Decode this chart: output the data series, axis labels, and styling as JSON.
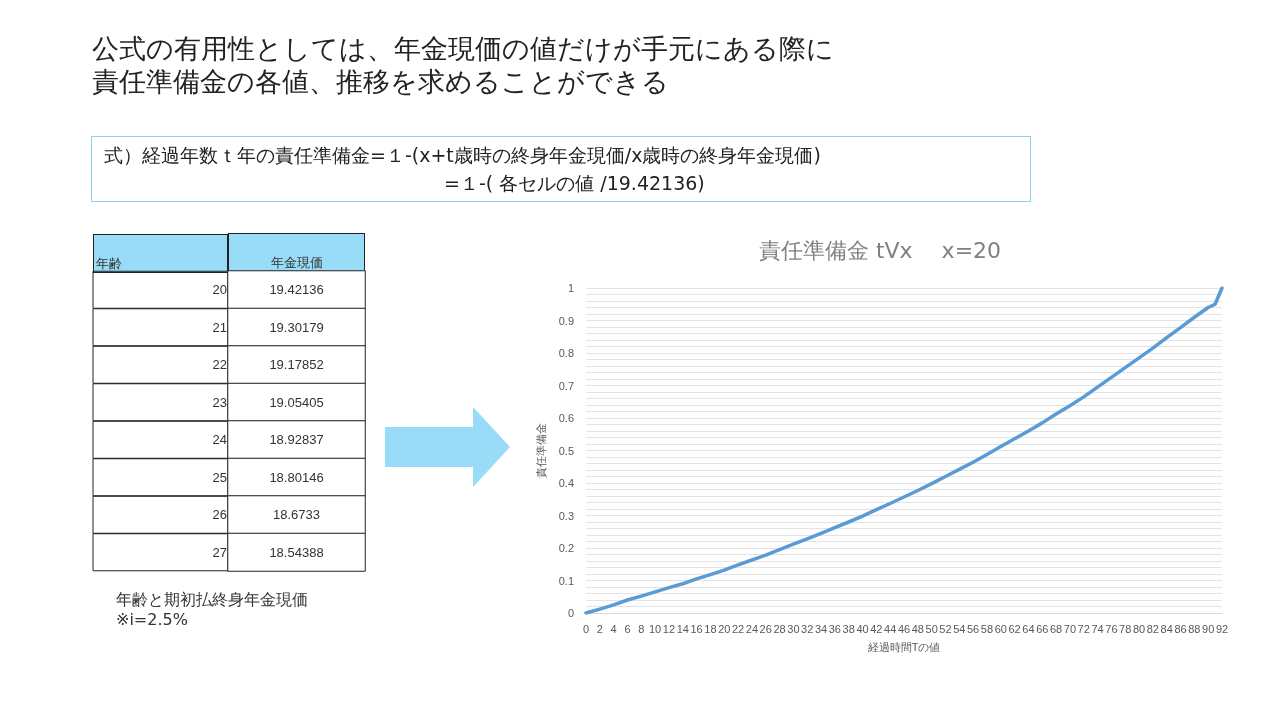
{
  "chart_data": [
    {
      "type": "other",
      "title": "公式の有用性としては、年金現価の値だけが手元にある際に責任準備金の各値、推移を求めることができる",
      "annotations": [
        "式）経過年数ｔ年の責任準備金=１-(x+t歳時の終身年金現価/x歳時の終身年金現価)",
        "=１-( 各セルの値 /19.42136)"
      ]
    },
    {
      "type": "heatmap",
      "ylabel": "年齢",
      "categories": [
        "年金現価"
      ],
      "y_categories": [
        "20",
        "21",
        "22",
        "23",
        "24",
        "25",
        "26",
        "27"
      ],
      "cells": [
        [
          19.42136
        ],
        [
          19.30179
        ],
        [
          19.17852
        ],
        [
          19.05405
        ],
        [
          18.92837
        ],
        [
          18.80146
        ],
        [
          18.6733
        ],
        [
          18.54388
        ]
      ],
      "data_labels": true,
      "annotations": [
        "年齢と期初払終身年金現価\n※i=2.5%"
      ],
      "color": "#99dcf7"
    },
    {
      "type": "line",
      "title": "責任準備金 tVx　 x=20",
      "xlabel": "経過時間Tの値",
      "ylabel": "責任準備金",
      "grid": "y",
      "marker": "none",
      "line_style": "solid",
      "x": [
        0,
        2,
        4,
        6,
        8,
        10,
        12,
        14,
        16,
        18,
        20,
        22,
        24,
        26,
        28,
        30,
        32,
        34,
        36,
        38,
        40,
        42,
        44,
        46,
        48,
        50,
        52,
        54,
        56,
        58,
        60,
        62,
        64,
        66,
        68,
        70,
        72,
        74,
        76,
        78,
        80,
        82,
        84,
        86,
        88,
        90,
        91,
        92
      ],
      "series": [
        {
          "color": "#5b9bd5",
          "values": [
            0,
            0.012,
            0.025,
            0.04,
            0.052,
            0.065,
            0.078,
            0.09,
            0.105,
            0.118,
            0.132,
            0.148,
            0.163,
            0.178,
            0.195,
            0.212,
            0.228,
            0.245,
            0.263,
            0.28,
            0.298,
            0.318,
            0.337,
            0.357,
            0.377,
            0.398,
            0.42,
            0.442,
            0.464,
            0.488,
            0.512,
            0.536,
            0.56,
            0.585,
            0.612,
            0.638,
            0.665,
            0.695,
            0.725,
            0.755,
            0.785,
            0.815,
            0.847,
            0.878,
            0.91,
            0.94,
            0.95,
            1
          ]
        }
      ],
      "xlim": [
        0,
        92
      ],
      "xticks": [
        0,
        2,
        4,
        6,
        8,
        10,
        12,
        14,
        16,
        18,
        20,
        22,
        24,
        26,
        28,
        30,
        32,
        34,
        36,
        38,
        40,
        42,
        44,
        46,
        48,
        50,
        52,
        54,
        56,
        58,
        60,
        62,
        64,
        66,
        68,
        70,
        72,
        74,
        76,
        78,
        80,
        82,
        84,
        86,
        88,
        90,
        92
      ],
      "ylim": [
        0,
        1
      ],
      "yticks": [
        0,
        {
          "value": 0.02,
          "label": null
        },
        {
          "value": 0.04,
          "label": null
        },
        {
          "value": 0.06,
          "label": null
        },
        {
          "value": 0.08,
          "label": null
        },
        0.1,
        {
          "value": 0.12,
          "label": null
        },
        {
          "value": 0.14,
          "label": null
        },
        {
          "value": 0.16,
          "label": null
        },
        {
          "value": 0.18,
          "label": null
        },
        0.2,
        {
          "value": 0.22,
          "label": null
        },
        {
          "value": 0.24,
          "label": null
        },
        {
          "value": 0.26,
          "label": null
        },
        {
          "value": 0.28,
          "label": null
        },
        0.3,
        {
          "value": 0.32,
          "label": null
        },
        {
          "value": 0.34,
          "label": null
        },
        {
          "value": 0.36,
          "label": null
        },
        {
          "value": 0.38,
          "label": null
        },
        0.4,
        {
          "value": 0.42,
          "label": null
        },
        {
          "value": 0.44,
          "label": null
        },
        {
          "value": 0.46,
          "label": null
        },
        {
          "value": 0.48,
          "label": null
        },
        0.5,
        {
          "value": 0.52,
          "label": null
        },
        {
          "value": 0.54,
          "label": null
        },
        {
          "value": 0.56,
          "label": null
        },
        {
          "value": 0.58,
          "label": null
        },
        0.6,
        {
          "value": 0.62,
          "label": null
        },
        {
          "value": 0.64,
          "label": null
        },
        {
          "value": 0.66,
          "label": null
        },
        {
          "value": 0.68,
          "label": null
        },
        0.7,
        {
          "value": 0.72,
          "label": null
        },
        {
          "value": 0.74,
          "label": null
        },
        {
          "value": 0.76,
          "label": null
        },
        {
          "value": 0.78,
          "label": null
        },
        0.8,
        {
          "value": 0.82,
          "label": null
        },
        {
          "value": 0.84,
          "label": null
        },
        {
          "value": 0.86,
          "label": null
        },
        {
          "value": 0.88,
          "label": null
        },
        0.9,
        {
          "value": 0.92,
          "label": null
        },
        {
          "value": 0.94,
          "label": null
        },
        {
          "value": 0.96,
          "label": null
        },
        {
          "value": 0.98,
          "label": null
        },
        1
      ]
    }
  ]
}
